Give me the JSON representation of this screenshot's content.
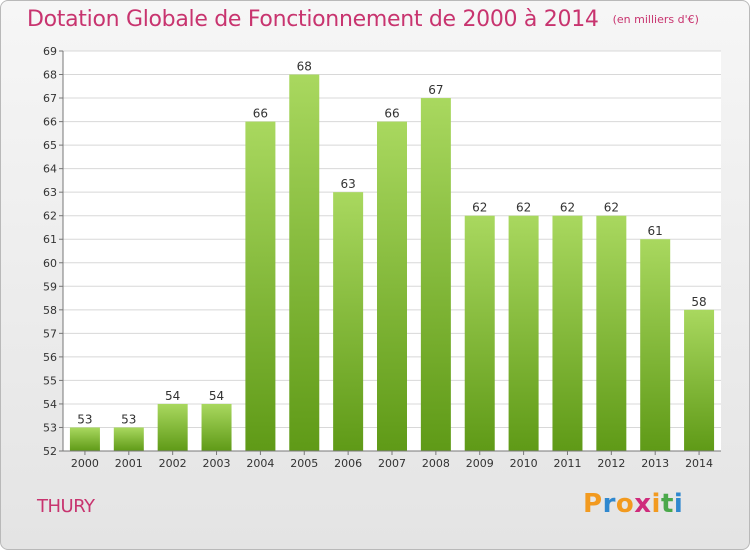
{
  "title": "Dotation Globale de Fonctionnement de 2000 à 2014",
  "subtitle": "(en milliers d'€)",
  "commune": "THURY",
  "logo": {
    "letters": [
      "P",
      "r",
      "o",
      "x",
      "i",
      "t",
      "i"
    ],
    "colors": [
      "#f29a1f",
      "#2f88cf",
      "#f29a1f",
      "#cf2b7b",
      "#f29a1f",
      "#4aa84a",
      "#2f88cf"
    ]
  },
  "colors": {
    "bar_top": "#a9d85f",
    "bar_bottom": "#5f9a17",
    "grid": "#d8d8d8",
    "axis": "#777777",
    "text": "#333333",
    "title": "#c8346f"
  },
  "chart_data": {
    "type": "bar",
    "categories": [
      "2000",
      "2001",
      "2002",
      "2003",
      "2004",
      "2005",
      "2006",
      "2007",
      "2008",
      "2009",
      "2010",
      "2011",
      "2012",
      "2013",
      "2014"
    ],
    "values": [
      53,
      53,
      54,
      54,
      66,
      68,
      63,
      66,
      67,
      62,
      62,
      62,
      62,
      61,
      58
    ],
    "ylim": [
      52,
      69
    ],
    "yticks": [
      52,
      53,
      54,
      55,
      56,
      57,
      58,
      59,
      60,
      61,
      62,
      63,
      64,
      65,
      66,
      67,
      68,
      69
    ],
    "grid": true,
    "xlabel": "",
    "ylabel": ""
  }
}
